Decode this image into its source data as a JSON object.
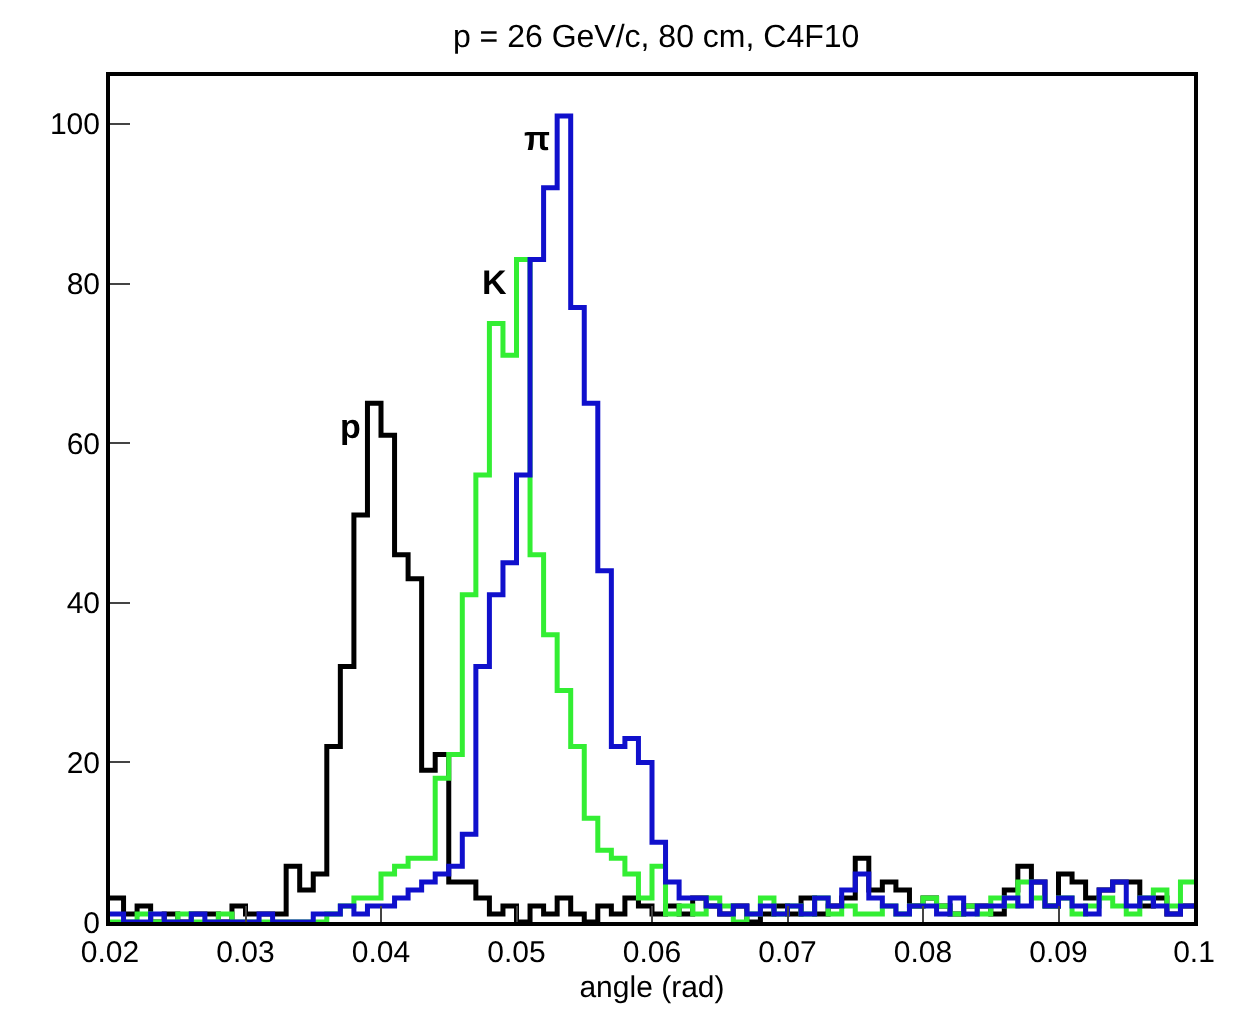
{
  "chart_data": {
    "type": "histogram",
    "title": "p = 26 GeV/c, 80 cm, C4F10",
    "xlabel": "angle (rad)",
    "bins": [
      0.02,
      0.021,
      0.022,
      0.023,
      0.024,
      0.025,
      0.026,
      0.027,
      0.028,
      0.029,
      0.03,
      0.031,
      0.032,
      0.033,
      0.034,
      0.035,
      0.036,
      0.037,
      0.038,
      0.039,
      0.04,
      0.041,
      0.042,
      0.043,
      0.044,
      0.045,
      0.046,
      0.047,
      0.048,
      0.049,
      0.05,
      0.051,
      0.052,
      0.053,
      0.054,
      0.055,
      0.056,
      0.057,
      0.058,
      0.059,
      0.06,
      0.061,
      0.062,
      0.063,
      0.064,
      0.065,
      0.066,
      0.067,
      0.068,
      0.069,
      0.07,
      0.071,
      0.072,
      0.073,
      0.074,
      0.075,
      0.076,
      0.077,
      0.078,
      0.079,
      0.08,
      0.081,
      0.082,
      0.083,
      0.084,
      0.085,
      0.086,
      0.087,
      0.088,
      0.089,
      0.09,
      0.091,
      0.092,
      0.093,
      0.094,
      0.095,
      0.096,
      0.097,
      0.098,
      0.099,
      0.1
    ],
    "series": [
      {
        "name": "p",
        "color": "#000000",
        "values": [
          3,
          1,
          2,
          0,
          1,
          0,
          1,
          1,
          0,
          2,
          1,
          1,
          1,
          7,
          4,
          6,
          22,
          32,
          51,
          65,
          61,
          46,
          43,
          19,
          21,
          5,
          5,
          3,
          1,
          2,
          0,
          2,
          1,
          3,
          1,
          0,
          2,
          1,
          3,
          2,
          1,
          2,
          1,
          3,
          2,
          1,
          2,
          0,
          1,
          2,
          1,
          3,
          1,
          2,
          3,
          8,
          4,
          5,
          4,
          2,
          3,
          2,
          1,
          2,
          2,
          1,
          4,
          7,
          5,
          2,
          6,
          5,
          3,
          4,
          5,
          5,
          2,
          3,
          1,
          2
        ]
      },
      {
        "name": "K",
        "color": "#33ee33",
        "values": [
          0,
          0,
          1,
          0,
          0,
          1,
          0,
          0,
          1,
          0,
          0,
          0,
          0,
          0,
          0,
          0,
          1,
          2,
          3,
          3,
          6,
          7,
          8,
          8,
          18,
          21,
          41,
          56,
          75,
          71,
          83,
          46,
          36,
          29,
          22,
          13,
          9,
          8,
          6,
          3,
          7,
          1,
          2,
          1,
          3,
          2,
          0,
          1,
          3,
          1,
          2,
          1,
          3,
          1,
          2,
          1,
          1,
          2,
          1,
          2,
          3,
          2,
          1,
          2,
          1,
          3,
          2,
          5,
          3,
          2,
          3,
          1,
          2,
          3,
          2,
          1,
          3,
          4,
          2,
          5
        ]
      },
      {
        "name": "π",
        "color": "#1010cc",
        "values": [
          1,
          0,
          0,
          1,
          0,
          0,
          1,
          0,
          0,
          0,
          0,
          1,
          0,
          0,
          0,
          1,
          1,
          2,
          1,
          2,
          2,
          3,
          4,
          5,
          6,
          7,
          11,
          32,
          41,
          45,
          56,
          83,
          92,
          101,
          77,
          65,
          44,
          22,
          23,
          20,
          10,
          5,
          3,
          3,
          2,
          1,
          2,
          1,
          2,
          1,
          2,
          1,
          3,
          2,
          4,
          6,
          3,
          2,
          1,
          2,
          2,
          1,
          3,
          1,
          2,
          2,
          3,
          2,
          5,
          2,
          3,
          2,
          1,
          4,
          5,
          2,
          3,
          2,
          1,
          2
        ]
      }
    ],
    "xlim": [
      0.02,
      0.1
    ],
    "xticks": [
      0.02,
      0.03,
      0.04,
      0.05,
      0.06,
      0.07,
      0.08,
      0.09,
      0.1
    ],
    "ylim": [
      0,
      106
    ],
    "yticks": [
      0,
      20,
      40,
      60,
      80,
      100
    ],
    "legend": false
  }
}
